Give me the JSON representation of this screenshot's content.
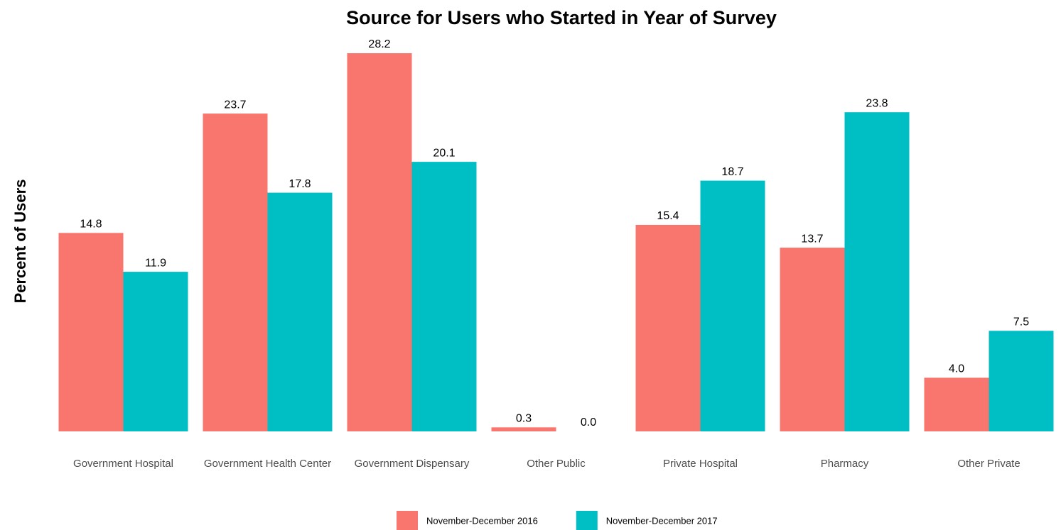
{
  "chart_data": {
    "type": "bar",
    "title": "Source for Users who Started in Year of Survey",
    "y_label": "Percent of Users",
    "categories": [
      "Government Hospital",
      "Government Health Center",
      "Government Dispensary",
      "Other Public",
      "Private Hospital",
      "Pharmacy",
      "Other Private"
    ],
    "series": [
      {
        "name": "November-December 2016",
        "color": "#F8766D",
        "values": [
          14.8,
          23.7,
          28.2,
          0.3,
          15.4,
          13.7,
          4
        ],
        "value_labels": [
          "14.8",
          "23.7",
          "28.2",
          "0.3",
          "15.4",
          "13.7",
          "4.0"
        ]
      },
      {
        "name": "November-December 2017",
        "color": "#00BFC4",
        "values": [
          11.9,
          17.8,
          20.1,
          0,
          18.7,
          23.8,
          7.5
        ],
        "value_labels": [
          "11.9",
          "17.8",
          "20.1",
          "0.0",
          "18.7",
          "23.8",
          "7.5"
        ]
      }
    ],
    "ylim": [
      0,
      30
    ],
    "legend": "bottom"
  }
}
